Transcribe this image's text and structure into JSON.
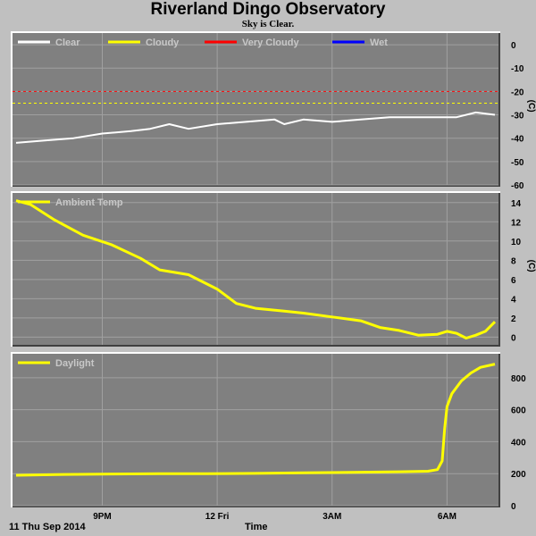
{
  "title": "Riverland Dingo Observatory",
  "subtitle": "Sky is Clear.",
  "date_label": "11 Thu Sep 2014",
  "time_label": "Time",
  "x_ticks": [
    "9PM",
    "12 Fri",
    "3AM",
    "6AM"
  ],
  "colors": {
    "panel_bg": "#808080",
    "page_bg": "#c0c0c0",
    "clear": "#ffffff",
    "cloudy": "#ffff00",
    "very_cloudy": "#ff0000",
    "wet": "#0000ff"
  },
  "chart_data": [
    {
      "type": "line",
      "ylabel": "(C)",
      "ylim": [
        -60,
        5
      ],
      "yticks": [
        0,
        -10,
        -20,
        -30,
        -40,
        -50,
        -60
      ],
      "grid": true,
      "legend": "top-left",
      "legend_entries": [
        "Clear",
        "Cloudy",
        "Very Cloudy",
        "Wet"
      ],
      "thresholds": [
        {
          "value": -20,
          "color": "#ff0000"
        },
        {
          "value": -25,
          "color": "#ffff00"
        }
      ],
      "x": [
        0,
        0.06,
        0.12,
        0.18,
        0.24,
        0.28,
        0.32,
        0.36,
        0.42,
        0.48,
        0.54,
        0.56,
        0.6,
        0.66,
        0.72,
        0.78,
        0.84,
        0.88,
        0.92,
        0.96,
        1.0
      ],
      "series": [
        {
          "name": "Clear",
          "values": [
            -42,
            -41,
            -40,
            -38,
            -37,
            -36,
            -34,
            -36,
            -34,
            -33,
            -32,
            -34,
            -32,
            -33,
            -32,
            -31,
            -31,
            -31,
            -31,
            -29,
            -30
          ]
        }
      ]
    },
    {
      "type": "line",
      "ylabel": "(C)",
      "ylim": [
        -0.8,
        15
      ],
      "yticks": [
        14,
        12,
        10,
        8,
        6,
        4,
        2,
        0
      ],
      "grid": true,
      "legend": "top-left",
      "legend_entries": [
        "Ambient Temp"
      ],
      "x": [
        0,
        0.03,
        0.08,
        0.14,
        0.2,
        0.26,
        0.3,
        0.36,
        0.42,
        0.46,
        0.5,
        0.56,
        0.6,
        0.66,
        0.72,
        0.76,
        0.8,
        0.84,
        0.88,
        0.9,
        0.92,
        0.94,
        0.96,
        0.98,
        1.0
      ],
      "series": [
        {
          "name": "Ambient Temp",
          "values": [
            14.2,
            13.8,
            12.2,
            10.6,
            9.6,
            8.2,
            7.0,
            6.5,
            5.0,
            3.5,
            3.0,
            2.7,
            2.5,
            2.1,
            1.7,
            1.0,
            0.7,
            0.2,
            0.3,
            0.6,
            0.4,
            -0.1,
            0.2,
            0.6,
            1.6
          ]
        }
      ]
    },
    {
      "type": "line",
      "ylim": [
        0,
        950
      ],
      "yticks": [
        800,
        600,
        400,
        200,
        0
      ],
      "grid": true,
      "legend": "top-left",
      "legend_entries": [
        "Daylight"
      ],
      "x": [
        0,
        0.1,
        0.2,
        0.3,
        0.4,
        0.5,
        0.6,
        0.7,
        0.8,
        0.86,
        0.88,
        0.89,
        0.895,
        0.9,
        0.91,
        0.93,
        0.95,
        0.97,
        1.0
      ],
      "series": [
        {
          "name": "Daylight",
          "values": [
            190,
            195,
            198,
            200,
            200,
            202,
            205,
            208,
            212,
            215,
            225,
            280,
            480,
            620,
            700,
            780,
            830,
            865,
            885
          ]
        }
      ]
    }
  ]
}
